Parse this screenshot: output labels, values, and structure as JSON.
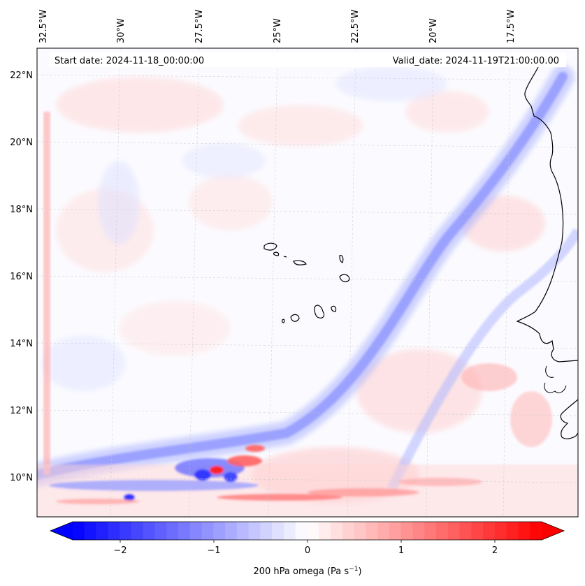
{
  "header": {
    "start_date": "Start date: 2024-11-18_00:00:00",
    "valid_date": "Valid_date: 2024-11-19T21:00:00.00"
  },
  "map": {
    "lon_labels": [
      "32.5°W",
      "30°W",
      "27.5°W",
      "25°W",
      "22.5°W",
      "20°W",
      "17.5°W"
    ],
    "lat_labels": [
      "22°N",
      "20°N",
      "18°N",
      "16°N",
      "14°N",
      "12°N",
      "10°N"
    ]
  },
  "colorbar": {
    "tick_labels": [
      "−2",
      "−1",
      "0",
      "1",
      "2"
    ],
    "label": "200 hPa omega (Pa s",
    "label_sup": "−1",
    "label_end": ")",
    "colors": {
      "negative": "#0000ff",
      "zero": "#ffffff",
      "positive": "#ff0000"
    }
  }
}
